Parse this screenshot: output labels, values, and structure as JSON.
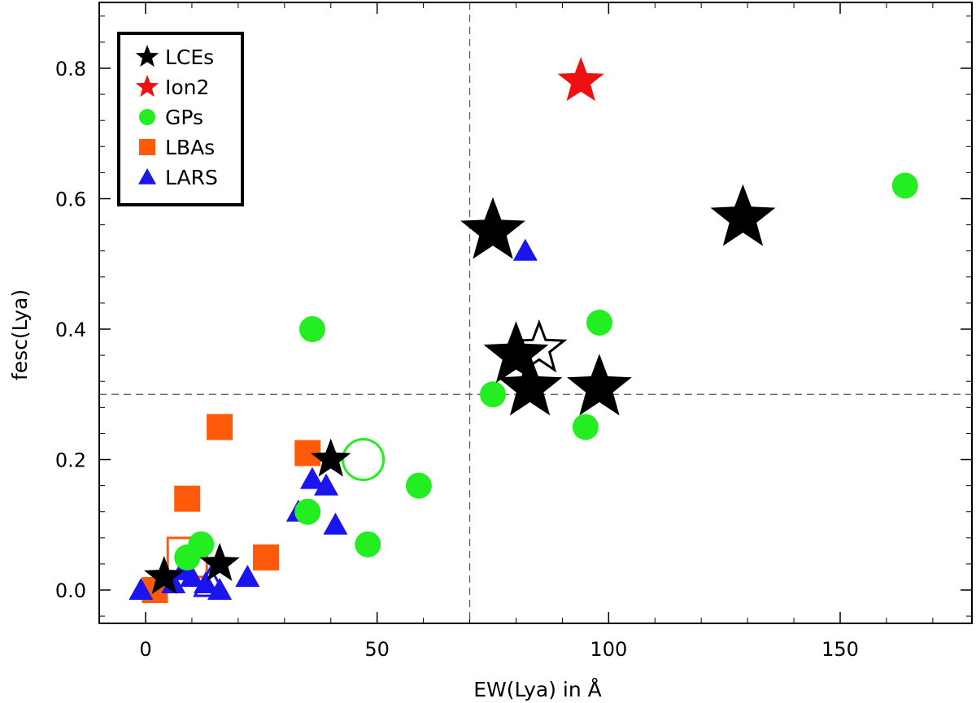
{
  "chart_data": {
    "type": "scatter",
    "title": "",
    "xlabel": "EW(Lya) in Å",
    "ylabel": "fesc(Lya)",
    "xlim": [
      -10,
      178
    ],
    "ylim": [
      -0.05,
      0.9
    ],
    "xticks": [
      0,
      50,
      100,
      150
    ],
    "yticks": [
      0.0,
      0.2,
      0.4,
      0.6,
      0.8
    ],
    "ytick_labels": [
      "0.0",
      "0.2",
      "0.4",
      "0.6",
      "0.8"
    ],
    "reference_lines": {
      "x": 70,
      "y": 0.3
    },
    "legend_position": "top-left",
    "colors": {
      "LCEs": "#000000",
      "Ion2": "#ee1111",
      "GPs": "#22ee22",
      "LBAs": "#ff5a0a",
      "LARS": "#1a14ee"
    },
    "series": [
      {
        "name": "LCEs",
        "marker": "star",
        "points": [
          [
            75,
            0.55
          ],
          [
            129,
            0.57
          ],
          [
            80,
            0.36
          ],
          [
            83,
            0.31
          ],
          [
            98,
            0.31
          ],
          [
            40,
            0.2
          ],
          [
            4,
            0.02
          ],
          [
            16,
            0.04
          ]
        ],
        "open_points": [
          [
            85,
            0.37
          ]
        ]
      },
      {
        "name": "Ion2",
        "marker": "star",
        "points": [
          [
            94,
            0.78
          ]
        ]
      },
      {
        "name": "GPs",
        "marker": "circle",
        "points": [
          [
            164,
            0.62
          ],
          [
            98,
            0.41
          ],
          [
            36,
            0.4
          ],
          [
            75,
            0.3
          ],
          [
            95,
            0.25
          ],
          [
            59,
            0.16
          ],
          [
            35,
            0.12
          ],
          [
            48,
            0.07
          ],
          [
            12,
            0.07
          ],
          [
            9,
            0.05
          ]
        ],
        "open_points": [
          [
            47,
            0.2
          ]
        ]
      },
      {
        "name": "LBAs",
        "marker": "square",
        "points": [
          [
            16,
            0.25
          ],
          [
            35,
            0.21
          ],
          [
            9,
            0.14
          ],
          [
            26,
            0.05
          ],
          [
            2,
            0.0
          ]
        ],
        "open_points": [
          [
            9,
            0.05
          ]
        ]
      },
      {
        "name": "LARS",
        "marker": "triangle",
        "points": [
          [
            82,
            0.52
          ],
          [
            36,
            0.17
          ],
          [
            39,
            0.16
          ],
          [
            33,
            0.12
          ],
          [
            41,
            0.1
          ],
          [
            22,
            0.02
          ],
          [
            8,
            0.03
          ],
          [
            10,
            0.02
          ],
          [
            13,
            0.01
          ],
          [
            6,
            0.01
          ],
          [
            16,
            0.0
          ],
          [
            -1,
            0.0
          ]
        ],
        "open_points": [
          [
            14,
            0.01
          ]
        ]
      }
    ]
  }
}
